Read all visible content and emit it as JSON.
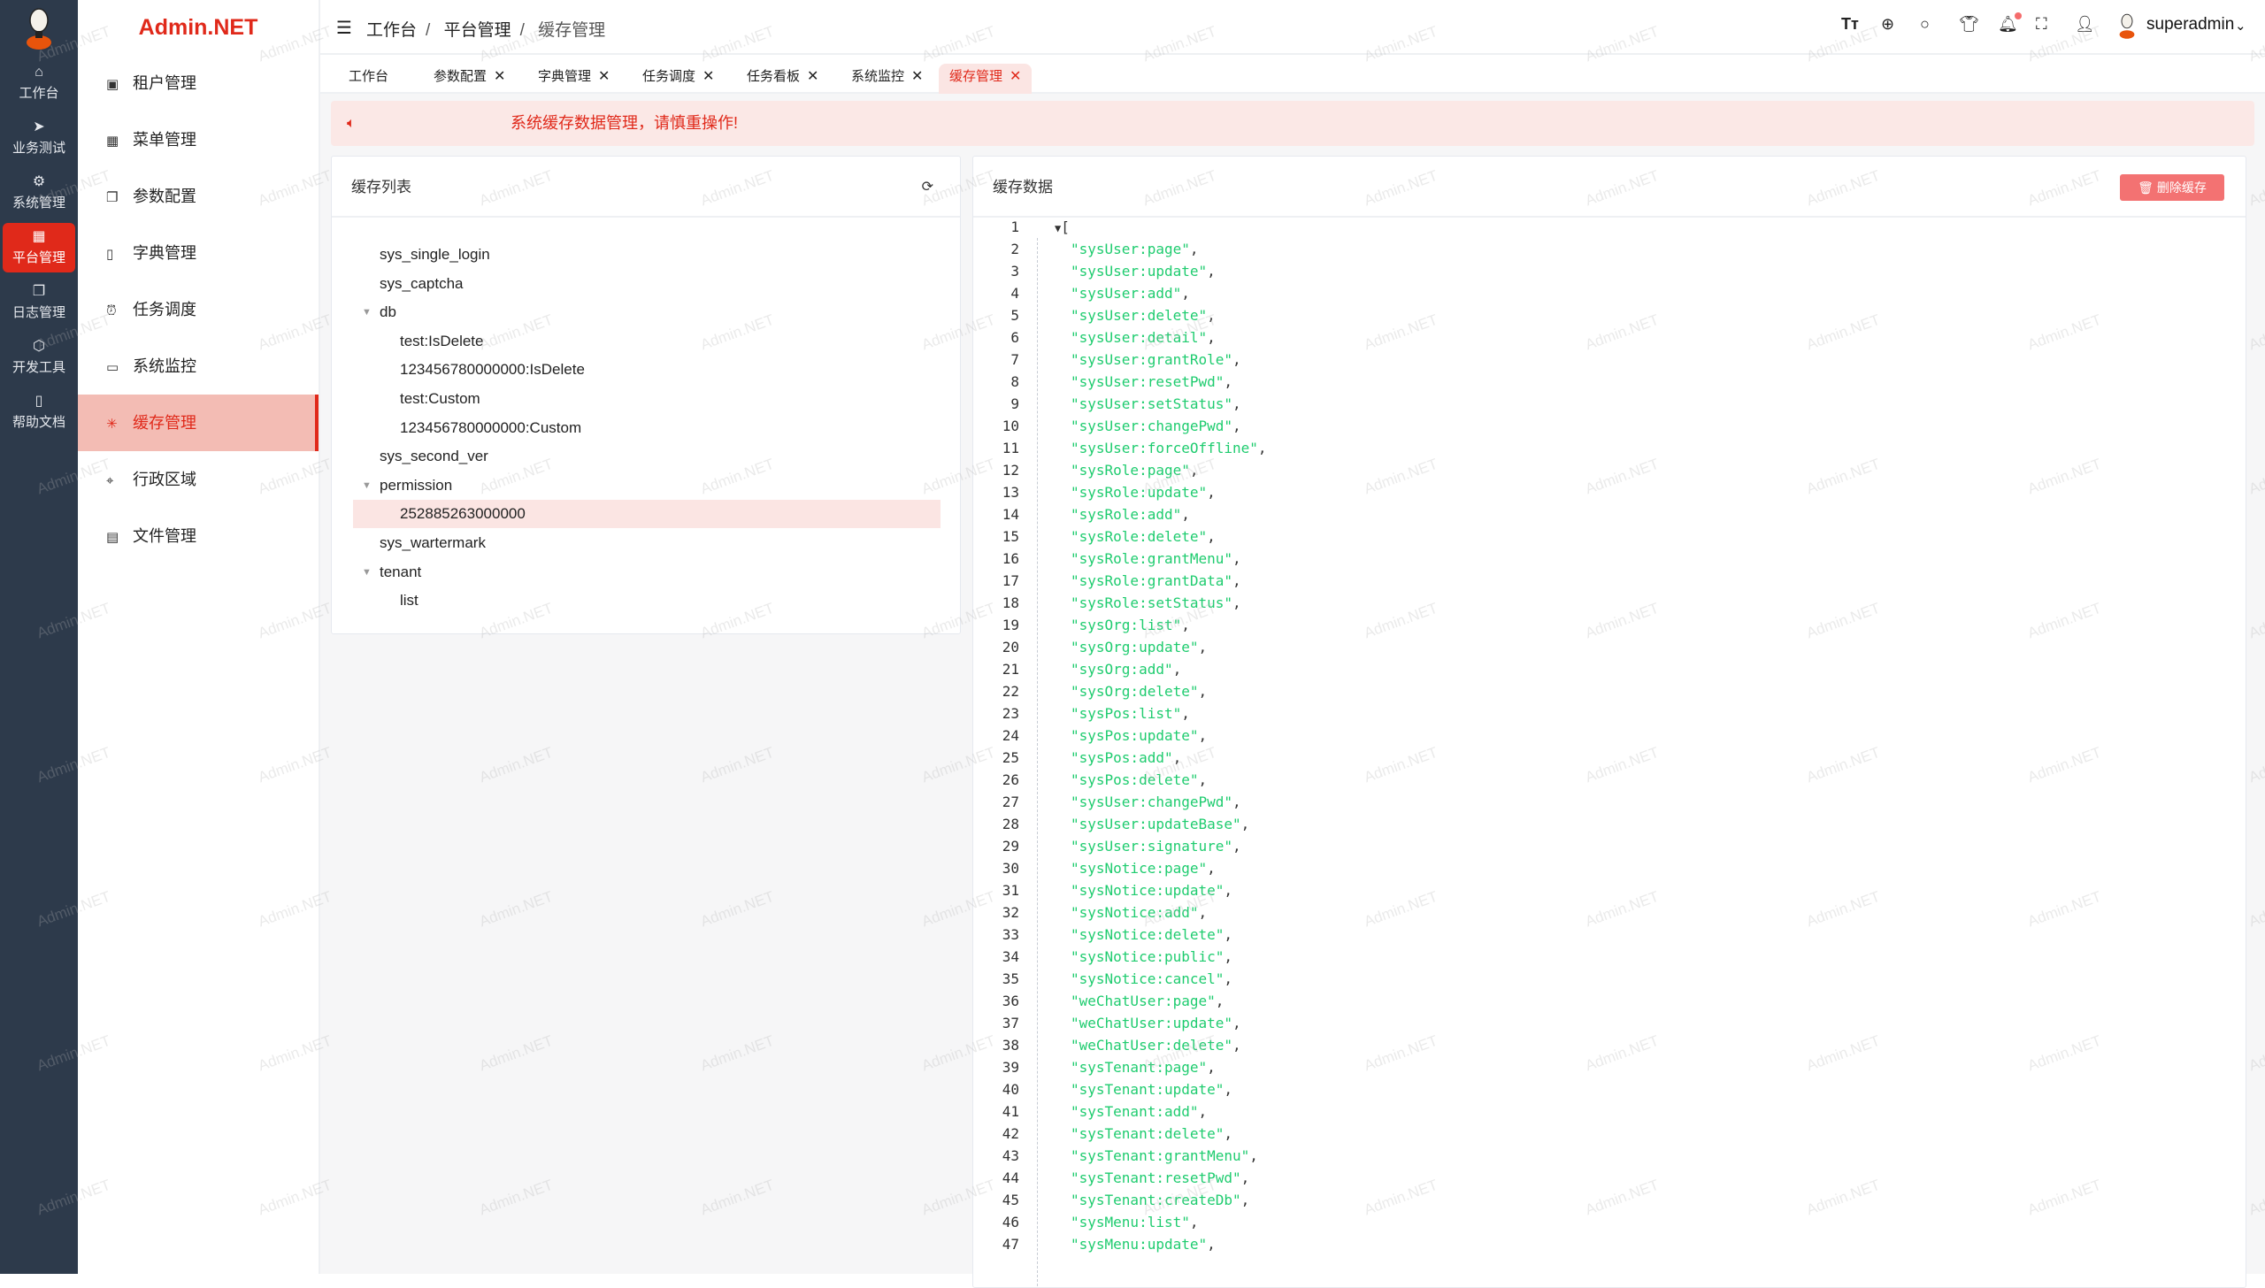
{
  "app": {
    "brand": "Admin.NET",
    "watermark": "Admin.NET"
  },
  "rail": {
    "items": [
      {
        "label": "工作台",
        "icon": "home-icon"
      },
      {
        "label": "业务测试",
        "icon": "send-icon"
      },
      {
        "label": "系统管理",
        "icon": "gear-icon"
      },
      {
        "label": "平台管理",
        "icon": "grid-icon",
        "active": true
      },
      {
        "label": "日志管理",
        "icon": "copy-icon"
      },
      {
        "label": "开发工具",
        "icon": "chip-icon"
      },
      {
        "label": "帮助文档",
        "icon": "book-icon"
      }
    ]
  },
  "menu": {
    "items": [
      {
        "label": "租户管理",
        "icon": "building-icon"
      },
      {
        "label": "菜单管理",
        "icon": "grid-icon"
      },
      {
        "label": "参数配置",
        "icon": "copy-icon"
      },
      {
        "label": "字典管理",
        "icon": "book-icon"
      },
      {
        "label": "任务调度",
        "icon": "alarm-icon"
      },
      {
        "label": "系统监控",
        "icon": "monitor-icon"
      },
      {
        "label": "缓存管理",
        "icon": "loading-icon",
        "active": true
      },
      {
        "label": "行政区域",
        "icon": "location-icon"
      },
      {
        "label": "文件管理",
        "icon": "document-icon"
      }
    ]
  },
  "header": {
    "breadcrumb": [
      "工作台",
      "平台管理",
      "缓存管理"
    ],
    "username": "superadmin",
    "notification_dot": true
  },
  "tabs": [
    {
      "label": "工作台",
      "closable": false
    },
    {
      "label": "参数配置",
      "closable": true
    },
    {
      "label": "字典管理",
      "closable": true
    },
    {
      "label": "任务调度",
      "closable": true
    },
    {
      "label": "任务看板",
      "closable": true
    },
    {
      "label": "系统监控",
      "closable": true
    },
    {
      "label": "缓存管理",
      "closable": true,
      "active": true
    }
  ],
  "alert": {
    "text": "系统缓存数据管理，请慎重操作!"
  },
  "cache_list": {
    "title": "缓存列表",
    "tree": [
      {
        "label": "sys_single_login",
        "level": 1
      },
      {
        "label": "sys_captcha",
        "level": 1
      },
      {
        "label": "db",
        "level": 1,
        "expanded": true
      },
      {
        "label": "test:IsDelete",
        "level": 2
      },
      {
        "label": "123456780000000:IsDelete",
        "level": 2
      },
      {
        "label": "test:Custom",
        "level": 2
      },
      {
        "label": "123456780000000:Custom",
        "level": 2
      },
      {
        "label": "sys_second_ver",
        "level": 1
      },
      {
        "label": "permission",
        "level": 1,
        "expanded": true
      },
      {
        "label": "252885263000000",
        "level": 2,
        "selected": true
      },
      {
        "label": "sys_wartermark",
        "level": 1
      },
      {
        "label": "tenant",
        "level": 1,
        "expanded": true
      },
      {
        "label": "list",
        "level": 2
      }
    ]
  },
  "cache_data": {
    "title": "缓存数据",
    "delete_label": "删除缓存",
    "lines": [
      "[",
      "\"sysUser:page\",",
      "\"sysUser:update\",",
      "\"sysUser:add\",",
      "\"sysUser:delete\",",
      "\"sysUser:detail\",",
      "\"sysUser:grantRole\",",
      "\"sysUser:resetPwd\",",
      "\"sysUser:setStatus\",",
      "\"sysUser:changePwd\",",
      "\"sysUser:forceOffline\",",
      "\"sysRole:page\",",
      "\"sysRole:update\",",
      "\"sysRole:add\",",
      "\"sysRole:delete\",",
      "\"sysRole:grantMenu\",",
      "\"sysRole:grantData\",",
      "\"sysRole:setStatus\",",
      "\"sysOrg:list\",",
      "\"sysOrg:update\",",
      "\"sysOrg:add\",",
      "\"sysOrg:delete\",",
      "\"sysPos:list\",",
      "\"sysPos:update\",",
      "\"sysPos:add\",",
      "\"sysPos:delete\",",
      "\"sysUser:changePwd\",",
      "\"sysUser:updateBase\",",
      "\"sysUser:signature\",",
      "\"sysNotice:page\",",
      "\"sysNotice:update\",",
      "\"sysNotice:add\",",
      "\"sysNotice:delete\",",
      "\"sysNotice:public\",",
      "\"sysNotice:cancel\",",
      "\"weChatUser:page\",",
      "\"weChatUser:update\",",
      "\"weChatUser:delete\",",
      "\"sysTenant:page\",",
      "\"sysTenant:update\",",
      "\"sysTenant:add\",",
      "\"sysTenant:delete\",",
      "\"sysTenant:grantMenu\",",
      "\"sysTenant:resetPwd\",",
      "\"sysTenant:createDb\",",
      "\"sysMenu:list\",",
      "\"sysMenu:update\","
    ]
  }
}
